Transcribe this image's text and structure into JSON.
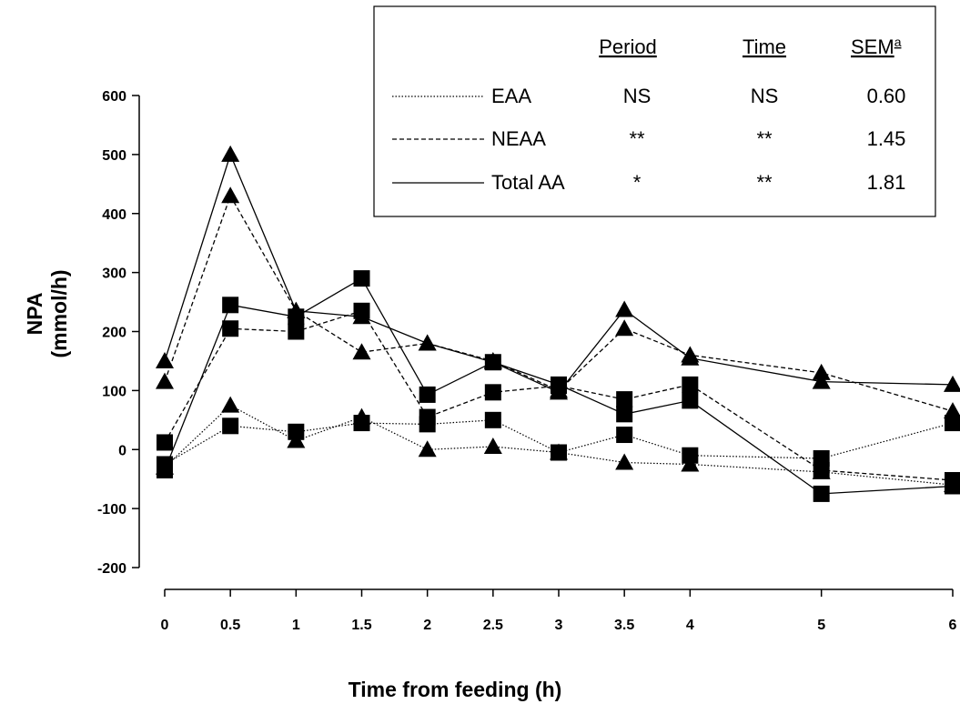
{
  "chart_data": {
    "type": "line",
    "xlabel": "Time from feeding (h)",
    "ylabel_line1": "NPA",
    "ylabel_line2": "(mmol/h)",
    "x": [
      0,
      0.5,
      1,
      1.5,
      2,
      2.5,
      3,
      3.5,
      4,
      5,
      6
    ],
    "x_tick_labels": [
      "0",
      "0.5",
      "1",
      "1.5",
      "2",
      "2.5",
      "3",
      "3.5",
      "4",
      "5",
      "6"
    ],
    "xlim": [
      0,
      6
    ],
    "ylim": [
      -200,
      600
    ],
    "y_ticks": [
      -200,
      -100,
      0,
      100,
      200,
      300,
      400,
      500,
      600
    ],
    "grid": false,
    "series": [
      {
        "name": "EAA",
        "marker": "triangle",
        "linestyle": "dotted",
        "values": [
          -30,
          75,
          15,
          55,
          0,
          5,
          -5,
          -22,
          -25,
          -38,
          -60
        ]
      },
      {
        "name": "EAA",
        "marker": "square",
        "linestyle": "dotted",
        "values": [
          -25,
          40,
          30,
          45,
          43,
          50,
          -5,
          25,
          -10,
          -15,
          45
        ]
      },
      {
        "name": "NEAA",
        "marker": "triangle",
        "linestyle": "dashed",
        "values": [
          115,
          430,
          235,
          165,
          180,
          150,
          100,
          205,
          160,
          130,
          65
        ]
      },
      {
        "name": "NEAA",
        "marker": "square",
        "linestyle": "dashed",
        "values": [
          12,
          205,
          200,
          235,
          55,
          97,
          108,
          85,
          110,
          -35,
          -52
        ]
      },
      {
        "name": "Total AA",
        "marker": "triangle",
        "linestyle": "solid",
        "values": [
          150,
          500,
          235,
          225,
          180,
          148,
          97,
          237,
          155,
          115,
          110
        ]
      },
      {
        "name": "Total AA",
        "marker": "square",
        "linestyle": "solid",
        "values": [
          -35,
          245,
          225,
          290,
          93,
          148,
          110,
          60,
          83,
          -75,
          -62
        ]
      }
    ],
    "legend": {
      "headers": [
        "Period",
        "Time",
        "SEM",
        "a"
      ],
      "rows": [
        {
          "label": "EAA",
          "linestyle": "dotted",
          "period": "NS",
          "time": "NS",
          "sem": "0.60"
        },
        {
          "label": "NEAA",
          "linestyle": "dashed",
          "period": "**",
          "time": "**",
          "sem": "1.45"
        },
        {
          "label": "Total AA",
          "linestyle": "solid",
          "period": "*",
          "time": "**",
          "sem": "1.81"
        }
      ]
    }
  }
}
